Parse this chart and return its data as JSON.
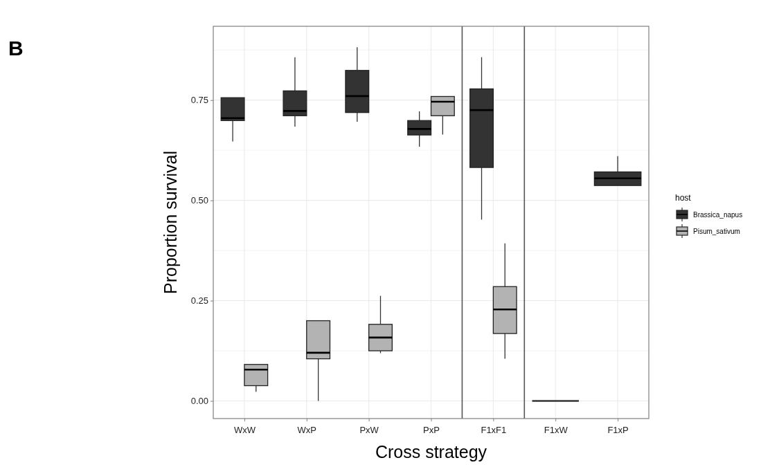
{
  "chart_data": {
    "type": "box",
    "xlabel": "Cross strategy",
    "ylabel": "Proportion survival",
    "legend_title": "host",
    "annotations": [
      "B"
    ],
    "categories": [
      "WxW",
      "WxP",
      "PxW",
      "PxP",
      "F1xF1",
      "F1xW",
      "F1xP"
    ],
    "ylim": [
      -0.044,
      0.934
    ],
    "yticks": [
      {
        "value": 0,
        "label": "0.00"
      },
      {
        "value": 0.25,
        "label": "0.25"
      },
      {
        "value": 0.5,
        "label": "0.50"
      },
      {
        "value": 0.75,
        "label": "0.75"
      }
    ],
    "grid": true,
    "legend": "right",
    "series": [
      {
        "name": "Brassica_napus",
        "color": "#333333",
        "boxes": [
          {
            "low": 0.647,
            "q1": 0.699,
            "median": 0.705,
            "q3": 0.756,
            "high": 0.756
          },
          {
            "low": 0.684,
            "q1": 0.711,
            "median": 0.723,
            "q3": 0.773,
            "high": 0.857
          },
          {
            "low": 0.696,
            "q1": 0.719,
            "median": 0.76,
            "q3": 0.824,
            "high": 0.882
          },
          {
            "low": 0.634,
            "q1": 0.663,
            "median": 0.678,
            "q3": 0.699,
            "high": 0.722
          },
          {
            "low": 0.452,
            "q1": 0.582,
            "median": 0.725,
            "q3": 0.778,
            "high": 0.857
          },
          {
            "low": 0,
            "q1": 0,
            "median": 0,
            "q3": 0,
            "high": 0
          },
          {
            "low": 0.537,
            "q1": 0.537,
            "median": 0.555,
            "q3": 0.571,
            "high": 0.61
          }
        ]
      },
      {
        "name": "Pisum_sativum",
        "color": "#b3b3b3",
        "boxes": [
          {
            "low": 0.023,
            "q1": 0.038,
            "median": 0.078,
            "q3": 0.091,
            "high": 0.091
          },
          {
            "low": 0,
            "q1": 0.105,
            "median": 0.12,
            "q3": 0.2,
            "high": 0.2
          },
          {
            "low": 0.119,
            "q1": 0.125,
            "median": 0.158,
            "q3": 0.191,
            "high": 0.262
          },
          {
            "low": 0.664,
            "q1": 0.711,
            "median": 0.746,
            "q3": 0.759,
            "high": 0.759
          },
          {
            "low": 0.105,
            "q1": 0.168,
            "median": 0.228,
            "q3": 0.285,
            "high": 0.393
          },
          null,
          null
        ]
      }
    ]
  }
}
